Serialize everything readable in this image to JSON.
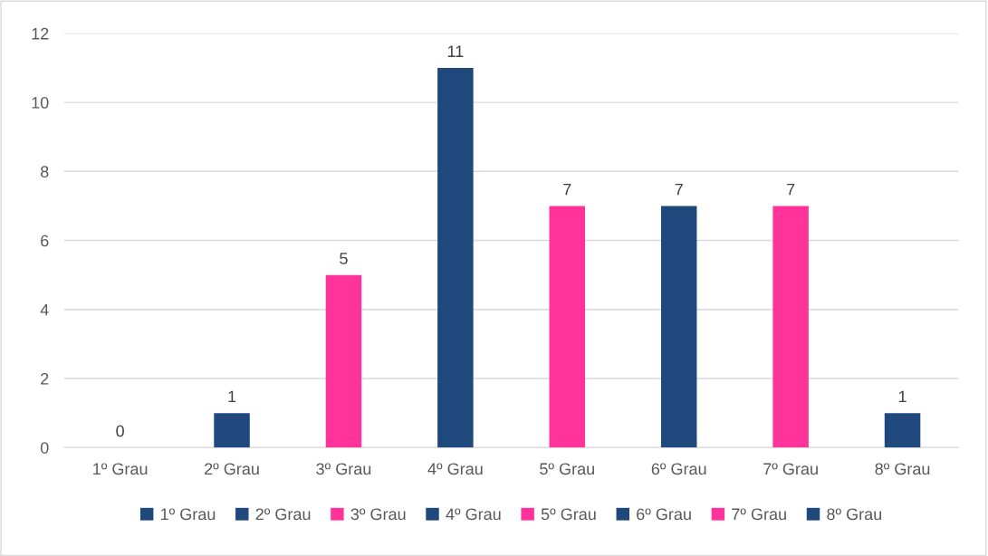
{
  "chart_data": {
    "type": "bar",
    "categories": [
      "1º Grau",
      "2º Grau",
      "3º Grau",
      "4º Grau",
      "5º Grau",
      "6º Grau",
      "7º Grau",
      "8º Grau"
    ],
    "series": [
      {
        "name": "1º Grau",
        "color": "#1f497d",
        "values": [
          0,
          null,
          null,
          null,
          null,
          null,
          null,
          null
        ]
      },
      {
        "name": "2º Grau",
        "color": "#1f497d",
        "values": [
          null,
          1,
          null,
          null,
          null,
          null,
          null,
          null
        ]
      },
      {
        "name": "3º Grau",
        "color": "#ff3399",
        "values": [
          null,
          null,
          5,
          null,
          null,
          null,
          null,
          null
        ]
      },
      {
        "name": "4º Grau",
        "color": "#1f497d",
        "values": [
          null,
          null,
          null,
          11,
          null,
          null,
          null,
          null
        ]
      },
      {
        "name": "5º Grau",
        "color": "#ff3399",
        "values": [
          null,
          null,
          null,
          null,
          7,
          null,
          null,
          null
        ]
      },
      {
        "name": "6º Grau",
        "color": "#1f497d",
        "values": [
          null,
          null,
          null,
          null,
          null,
          7,
          null,
          null
        ]
      },
      {
        "name": "7º Grau",
        "color": "#ff3399",
        "values": [
          null,
          null,
          null,
          null,
          null,
          null,
          7,
          null
        ]
      },
      {
        "name": "8º Grau",
        "color": "#1f497d",
        "values": [
          null,
          null,
          null,
          null,
          null,
          null,
          null,
          1
        ]
      }
    ],
    "ylim": [
      0,
      12
    ],
    "yticks": [
      0,
      2,
      4,
      6,
      8,
      10,
      12
    ],
    "grid": "y",
    "data_labels": true,
    "legend": "bottom"
  }
}
